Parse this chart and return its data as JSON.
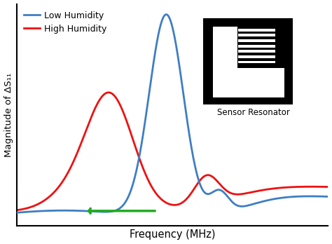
{
  "xlabel": "Frequency (MHz)",
  "ylabel": "Magnitude of ΔS₁₁",
  "low_humidity_color": "#3E7EC4",
  "high_humidity_color": "#EE1111",
  "arrow_color": "#22AA22",
  "legend_labels": [
    "Low Humidity",
    "High Humidity"
  ],
  "sensor_label": "Sensor Resonator",
  "bg_color": "#FFFFFF"
}
